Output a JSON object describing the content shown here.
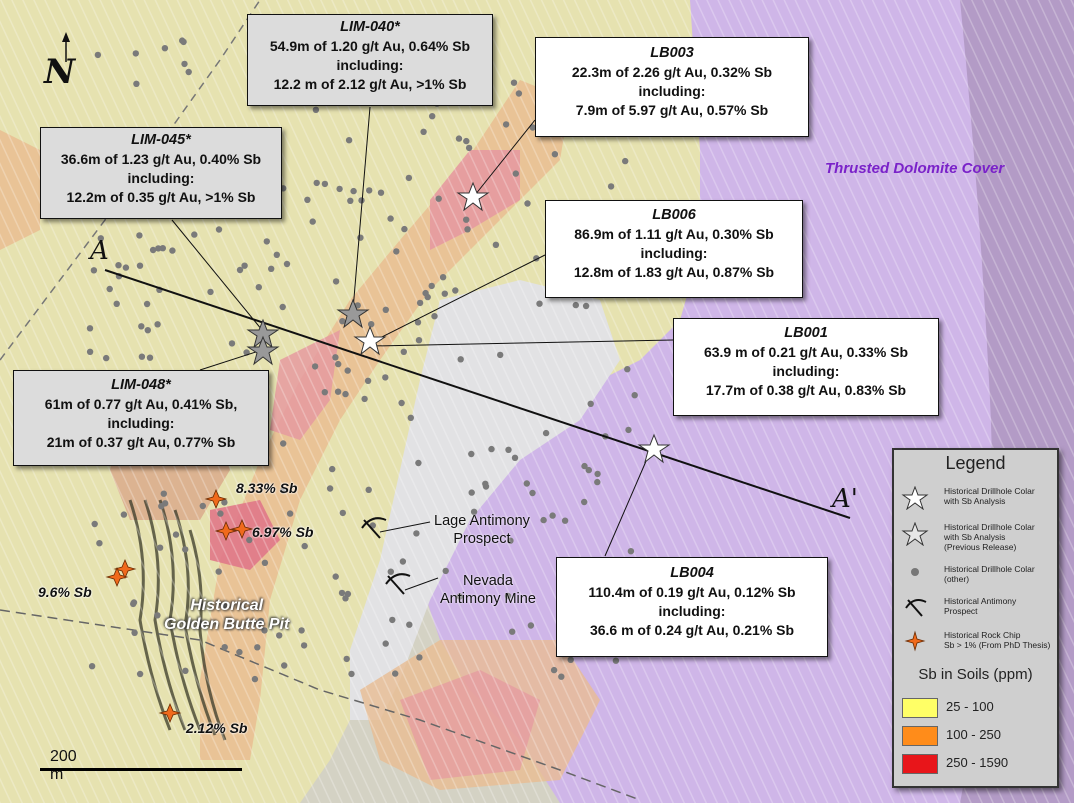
{
  "map": {
    "north_label": "N",
    "section_start": "A",
    "section_end": "A'",
    "thrust_label": "Thrusted Dolomite Cover",
    "pit_label_line1": "Historical",
    "pit_label_line2": "Golden Butte Pit",
    "prospect1_line1": "Lage Antimony",
    "prospect1_line2": "Prospect",
    "prospect2_line1": "Nevada",
    "prospect2_line2": "Antimony Mine",
    "chips": [
      "8.33% Sb",
      "6.97% Sb",
      "9.6% Sb",
      "2.12% Sb"
    ],
    "scale_label": "200 m"
  },
  "callouts": {
    "lim040": {
      "title": "LIM-040*",
      "line1": "54.9m of 1.20 g/t Au, 0.64% Sb",
      "line2": "including:",
      "line3": "12.2 m of 2.12 g/t Au, >1% Sb"
    },
    "lb003": {
      "title": "LB003",
      "line1": "22.3m of  2.26 g/t Au, 0.32% Sb",
      "line2": "including:",
      "line3": "7.9m of 5.97 g/t Au, 0.57% Sb"
    },
    "lim045": {
      "title": "LIM-045*",
      "line1": "36.6m of 1.23 g/t Au, 0.40% Sb",
      "line2": "including:",
      "line3": "12.2m of 0.35 g/t Au, >1% Sb"
    },
    "lb006": {
      "title": "LB006",
      "line1": "86.9m of 1.11 g/t Au, 0.30% Sb",
      "line2": "including:",
      "line3": "12.8m of 1.83 g/t Au, 0.87% Sb"
    },
    "lb001": {
      "title": "LB001",
      "line1": "63.9 m of 0.21 g/t Au, 0.33% Sb",
      "line2": "including:",
      "line3": "17.7m of 0.38 g/t Au, 0.83% Sb"
    },
    "lim048": {
      "title": "LIM-048*",
      "line1": "61m of  0.77 g/t Au, 0.41% Sb,",
      "line2": "including:",
      "line3": "21m of 0.37 g/t Au, 0.77% Sb"
    },
    "lb004": {
      "title": "LB004",
      "line1": "110.4m of 0.19 g/t Au, 0.12% Sb",
      "line2": "including:",
      "line3": "36.6 m of 0.24 g/t Au, 0.21% Sb"
    }
  },
  "legend": {
    "title": "Legend",
    "item1_line1": "Historical Drillhole Colar",
    "item1_line2": "with Sb Analysis",
    "item2_line1": "Historical Drillhole Colar",
    "item2_line2": "with Sb Analysis",
    "item2_line3": "(Previous Release)",
    "item3_line1": "Historical Drillhole Colar",
    "item3_line2": "(other)",
    "item4_line1": "Historical Antimony",
    "item4_line2": "Prospect",
    "item5_line1": "Historical Rock Chip",
    "item5_line2": "Sb > 1% (From PhD Thesis)",
    "soils_title": "Sb in Soils (ppm)",
    "soils": [
      {
        "range": "25 - 100",
        "color": "#ffff66"
      },
      {
        "range": "100 - 250",
        "color": "#ff8c1a"
      },
      {
        "range": "250 - 1590",
        "color": "#e8151a"
      }
    ]
  },
  "colors": {
    "soil_low": "#ece8b4",
    "soil_mid": "#e8b890",
    "soil_high": "#e49aa0",
    "dolomite": "#cdb4e6",
    "thrust_text": "#7a22c9",
    "chip_star": "#f06a1c"
  }
}
